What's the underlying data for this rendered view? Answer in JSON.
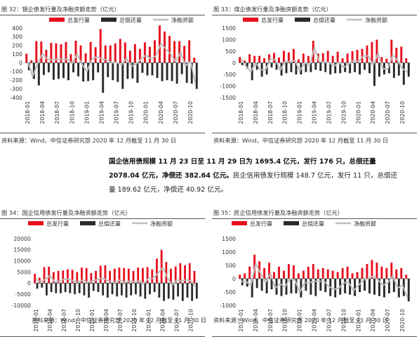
{
  "figures": [
    {
      "title": "图 32：钢企债发行量及净融资额走势（亿元）",
      "source": "资料来源：Wind，中信证券研究部 2020 年 12 月截至 11 月 30 日",
      "chart_data": {
        "type": "bar",
        "legend": [
          "总发行量",
          "总偿还量",
          "净融资额"
        ],
        "legend_position": "top",
        "yticks": [
          400,
          300,
          200,
          100,
          0,
          -100,
          -200,
          -300,
          -400
        ],
        "ylim": [
          -400,
          400
        ],
        "xticks": [
          "2018-01",
          "2018-04",
          "2018-07",
          "2018-10",
          "2019-01",
          "2019-04",
          "2019-07",
          "2019-10",
          "2020-01",
          "2020-04",
          "2020-07",
          "2020-10"
        ],
        "categories": [
          "2018-01",
          "2018-02",
          "2018-03",
          "2018-04",
          "2018-05",
          "2018-06",
          "2018-07",
          "2018-08",
          "2018-09",
          "2018-10",
          "2018-11",
          "2018-12",
          "2019-01",
          "2019-02",
          "2019-03",
          "2019-04",
          "2019-05",
          "2019-06",
          "2019-07",
          "2019-08",
          "2019-09",
          "2019-10",
          "2019-11",
          "2019-12",
          "2020-01",
          "2020-02",
          "2020-03",
          "2020-04",
          "2020-05",
          "2020-06",
          "2020-07",
          "2020-08",
          "2020-09",
          "2020-10",
          "2020-11"
        ],
        "series": [
          {
            "name": "总发行量",
            "values": [
              105,
              30,
              250,
              245,
              150,
              230,
              225,
              215,
              240,
              100,
              255,
              200,
              110,
              240,
              180,
              390,
              200,
              200,
              225,
              275,
              235,
              140,
              215,
              160,
              235,
              185,
              260,
              430,
              360,
              310,
              250,
              250,
              195,
              260,
              60
            ]
          },
          {
            "name": "总偿还量",
            "values": [
              -85,
              -185,
              -260,
              -140,
              -110,
              -195,
              -185,
              -175,
              -200,
              -110,
              -155,
              -215,
              -210,
              -200,
              -110,
              -345,
              -165,
              -200,
              -220,
              -300,
              -185,
              -180,
              -230,
              -115,
              -145,
              -145,
              -175,
              -210,
              -200,
              -210,
              -240,
              -130,
              -230,
              -240,
              -300
            ]
          },
          {
            "name": "净融资额",
            "values": [
              20,
              -155,
              -10,
              105,
              40,
              35,
              40,
              40,
              40,
              -10,
              100,
              -15,
              -100,
              40,
              70,
              45,
              35,
              0,
              5,
              -25,
              50,
              -40,
              -15,
              45,
              90,
              40,
              85,
              220,
              160,
              100,
              10,
              120,
              -35,
              20,
              -240
            ]
          }
        ]
      }
    },
    {
      "title": "图 33：煤企债发行量及净融资额走势（亿元）",
      "source": "资料来源：Wind，中信证券研究部 2020 年 12 月截至 11 月 30 日",
      "chart_data": {
        "type": "bar",
        "legend": [
          "总发行量",
          "总偿还量",
          "净融资额"
        ],
        "legend_position": "top",
        "yticks": [
          1500,
          1000,
          500,
          0,
          -500,
          -1000,
          -1500
        ],
        "ylim": [
          -1500,
          1500
        ],
        "xticks": [
          "2018-01",
          "2018-04",
          "2018-07",
          "2018-10",
          "2019-01",
          "2019-04",
          "2019-07",
          "2019-10",
          "2020-01",
          "2020-04",
          "2020-07",
          "2020-10"
        ],
        "categories": [
          "2018-01",
          "2018-02",
          "2018-03",
          "2018-04",
          "2018-05",
          "2018-06",
          "2018-07",
          "2018-08",
          "2018-09",
          "2018-10",
          "2018-11",
          "2018-12",
          "2019-01",
          "2019-02",
          "2019-03",
          "2019-04",
          "2019-05",
          "2019-06",
          "2019-07",
          "2019-08",
          "2019-09",
          "2019-10",
          "2019-11",
          "2019-12",
          "2020-01",
          "2020-02",
          "2020-03",
          "2020-04",
          "2020-05",
          "2020-06",
          "2020-07",
          "2020-08",
          "2020-09",
          "2020-10",
          "2020-11"
        ],
        "series": [
          {
            "name": "总发行量",
            "values": [
              250,
              100,
              370,
              300,
              300,
              200,
              370,
              430,
              230,
              520,
              450,
              600,
              150,
              400,
              300,
              950,
              400,
              420,
              520,
              300,
              480,
              200,
              400,
              500,
              560,
              600,
              750,
              900,
              1000,
              250,
              180,
              1000,
              650,
              700,
              200
            ]
          },
          {
            "name": "总偿还量",
            "values": [
              -100,
              -250,
              -750,
              -300,
              -600,
              -500,
              -200,
              -300,
              -550,
              -450,
              -400,
              -500,
              -500,
              -400,
              -400,
              -300,
              -350,
              -400,
              -500,
              -450,
              -450,
              -400,
              -450,
              -400,
              -500,
              -300,
              -450,
              -1000,
              -600,
              -500,
              -450,
              -650,
              -550,
              -950,
              -600
            ]
          },
          {
            "name": "净融资额",
            "values": [
              150,
              -150,
              -380,
              0,
              -300,
              -300,
              170,
              130,
              -320,
              70,
              50,
              100,
              -350,
              0,
              -100,
              650,
              50,
              20,
              20,
              -150,
              30,
              -200,
              -50,
              100,
              60,
              300,
              300,
              -100,
              400,
              -250,
              -270,
              350,
              100,
              -250,
              -400
            ]
          }
        ]
      }
    },
    {
      "title": "图 34：国企信用债发行量及净融资额走势（亿元）",
      "source": "资料来源：Wind，中信证券研究部 2020 年 12 月截至 11 月 30 日",
      "chart_data": {
        "type": "bar",
        "legend": [
          "总发行量",
          "总偿还量",
          "净融资额"
        ],
        "legend_position": "top",
        "yticks": [
          20000,
          15000,
          10000,
          5000,
          0,
          -5000,
          -10000
        ],
        "ylim": [
          -10000,
          20000
        ],
        "xticks": [
          "2018-01",
          "2018-04",
          "2018-07",
          "2018-10",
          "2019-01",
          "2019-04",
          "2019-07",
          "2019-10",
          "2020-01",
          "2020-04",
          "2020-07",
          "2020-10"
        ],
        "categories": [
          "2018-01",
          "2018-02",
          "2018-03",
          "2018-04",
          "2018-05",
          "2018-06",
          "2018-07",
          "2018-08",
          "2018-09",
          "2018-10",
          "2018-11",
          "2018-12",
          "2019-01",
          "2019-02",
          "2019-03",
          "2019-04",
          "2019-05",
          "2019-06",
          "2019-07",
          "2019-08",
          "2019-09",
          "2019-10",
          "2019-11",
          "2019-12",
          "2020-01",
          "2020-02",
          "2020-03",
          "2020-04",
          "2020-05",
          "2020-06",
          "2020-07",
          "2020-08",
          "2020-09",
          "2020-10",
          "2020-11"
        ],
        "series": [
          {
            "name": "总发行量",
            "values": [
              4200,
              2500,
              7200,
              7400,
              5000,
              5500,
              5700,
              6200,
              6000,
              5000,
              7000,
              6800,
              4500,
              5500,
              7800,
              8000,
              5500,
              6500,
              7000,
              6800,
              6500,
              5500,
              7000,
              6800,
              7200,
              6200,
              11000,
              15000,
              9500,
              6500,
              7500,
              9000,
              8000,
              9000,
              5500
            ]
          },
          {
            "name": "总偿还量",
            "values": [
              -2500,
              -2000,
              -5500,
              -4000,
              -4500,
              -4500,
              -4000,
              -4500,
              -5000,
              -4500,
              -5500,
              -6500,
              -3500,
              -4000,
              -5500,
              -6500,
              -5000,
              -6000,
              -5500,
              -6500,
              -5500,
              -5000,
              -6000,
              -7000,
              -5000,
              -4000,
              -6500,
              -8000,
              -7000,
              -7500,
              -6000,
              -8000,
              -6500,
              -8000,
              -7000
            ]
          },
          {
            "name": "净融资额",
            "values": [
              1700,
              500,
              1700,
              3400,
              500,
              1000,
              1700,
              1700,
              1000,
              500,
              1500,
              300,
              1000,
              1500,
              2300,
              1500,
              500,
              500,
              1500,
              300,
              1000,
              500,
              1000,
              -200,
              2200,
              2200,
              4500,
              7000,
              2500,
              -1000,
              1500,
              1000,
              1500,
              1000,
              -1500
            ]
          }
        ]
      }
    },
    {
      "title": "图 35：民企信用债发行量及净融资额走势（亿元）",
      "source": "资料来源：Wind，中信证券研究部 2020 年 12 月截至 11 月 30 日",
      "chart_data": {
        "type": "bar",
        "legend": [
          "总发行量",
          "总偿还量",
          "净融资额"
        ],
        "legend_position": "top",
        "yticks": [
          1500,
          1000,
          500,
          0,
          -500,
          -1000
        ],
        "ylim": [
          -1000,
          1500
        ],
        "xticks": [
          "2018-01",
          "2018-04",
          "2018-07",
          "2018-10",
          "2019-01",
          "2019-04",
          "2019-07",
          "2019-10",
          "2020-01",
          "2020-04",
          "2020-07",
          "2020-10"
        ],
        "categories": [
          "2018-01",
          "2018-02",
          "2018-03",
          "2018-04",
          "2018-05",
          "2018-06",
          "2018-07",
          "2018-08",
          "2018-09",
          "2018-10",
          "2018-11",
          "2018-12",
          "2019-01",
          "2019-02",
          "2019-03",
          "2019-04",
          "2019-05",
          "2019-06",
          "2019-07",
          "2019-08",
          "2019-09",
          "2019-10",
          "2019-11",
          "2019-12",
          "2020-01",
          "2020-02",
          "2020-03",
          "2020-04",
          "2020-05",
          "2020-06",
          "2020-07",
          "2020-08",
          "2020-09",
          "2020-10",
          "2020-11"
        ],
        "series": [
          {
            "name": "总发行量",
            "values": [
              150,
              200,
              450,
              900,
              650,
              400,
              600,
              250,
              450,
              300,
              550,
              500,
              200,
              300,
              450,
              550,
              350,
              400,
              350,
              300,
              250,
              400,
              450,
              200,
              250,
              400,
              550,
              700,
              600,
              450,
              400,
              600,
              350,
              400,
              150
            ]
          },
          {
            "name": "总偿还量",
            "values": [
              -250,
              -300,
              -700,
              -350,
              -450,
              -550,
              -400,
              -600,
              -650,
              -600,
              -550,
              -550,
              -700,
              -450,
              -600,
              -650,
              -450,
              -500,
              -650,
              -700,
              -600,
              -550,
              -600,
              -650,
              -500,
              -450,
              -550,
              -600,
              -650,
              -700,
              -550,
              -500,
              -700,
              -650,
              -850
            ]
          },
          {
            "name": "净融资额",
            "values": [
              -100,
              -100,
              -250,
              550,
              200,
              -150,
              200,
              -350,
              -200,
              -300,
              0,
              -50,
              -500,
              -150,
              -150,
              -100,
              -100,
              -100,
              -300,
              -400,
              -350,
              -150,
              -150,
              -450,
              -250,
              -50,
              0,
              100,
              -50,
              -250,
              -150,
              100,
              -350,
              -250,
              -700
            ]
          }
        ]
      }
    }
  ],
  "paragraph": {
    "bold_part": "国企信用债规模 11 月 23 日至 11 月 29 日为 1695.4 亿元，发行 176 只，总偿还量 2078.04 亿元，净偿还 382.64 亿元。",
    "normal_part": "民企信用债发行规模 148.7 亿元，发行 11 只，总偿还量 189.62 亿元，净偿还 40.92 亿元。"
  },
  "colors": {
    "issue": "#e8101c",
    "repay": "#2b2b2b",
    "net": "#bdbdbd",
    "axis": "#555555",
    "text": "#333333"
  }
}
